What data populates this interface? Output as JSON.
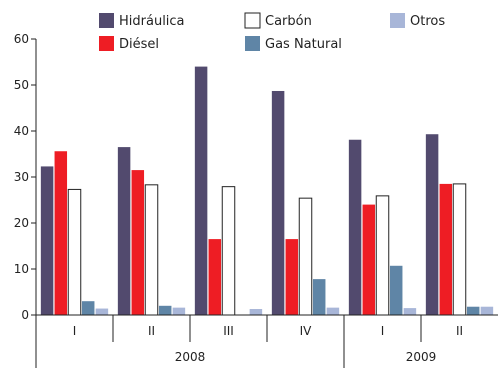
{
  "chart_data": {
    "type": "bar",
    "ylim": [
      0,
      60
    ],
    "yticks": [
      0,
      10,
      20,
      30,
      40,
      50,
      60
    ],
    "categories": [
      "I",
      "II",
      "III",
      "IV",
      "I",
      "II"
    ],
    "groups": [
      {
        "label": "2008",
        "span": 4
      },
      {
        "label": "2009",
        "span": 2
      }
    ],
    "series": [
      {
        "name": "Hidráulica",
        "color": "#524a6e",
        "values": [
          32.3,
          36.5,
          54.0,
          48.7,
          38.1,
          39.3
        ]
      },
      {
        "name": "Diésel",
        "color": "#ee1d24",
        "values": [
          35.6,
          31.5,
          16.5,
          16.5,
          24.0,
          28.5
        ]
      },
      {
        "name": "Carbón",
        "color": "#ffffff",
        "stroke": "#222222",
        "values": [
          27.3,
          28.3,
          27.9,
          25.4,
          25.9,
          28.5
        ]
      },
      {
        "name": "Gas Natural",
        "color": "#5f85a6",
        "values": [
          3.0,
          2.0,
          0.0,
          7.8,
          10.7,
          1.8
        ]
      },
      {
        "name": "Otros",
        "color": "#a8b6d8",
        "values": [
          1.4,
          1.6,
          1.3,
          1.6,
          1.5,
          1.8
        ]
      }
    ],
    "legend": {
      "placement": "top",
      "entries": [
        "Hidráulica",
        "Diésel",
        "Carbón",
        "Gas Natural",
        "Otros"
      ]
    },
    "grid": false,
    "title": "",
    "xlabel": "",
    "ylabel": ""
  }
}
